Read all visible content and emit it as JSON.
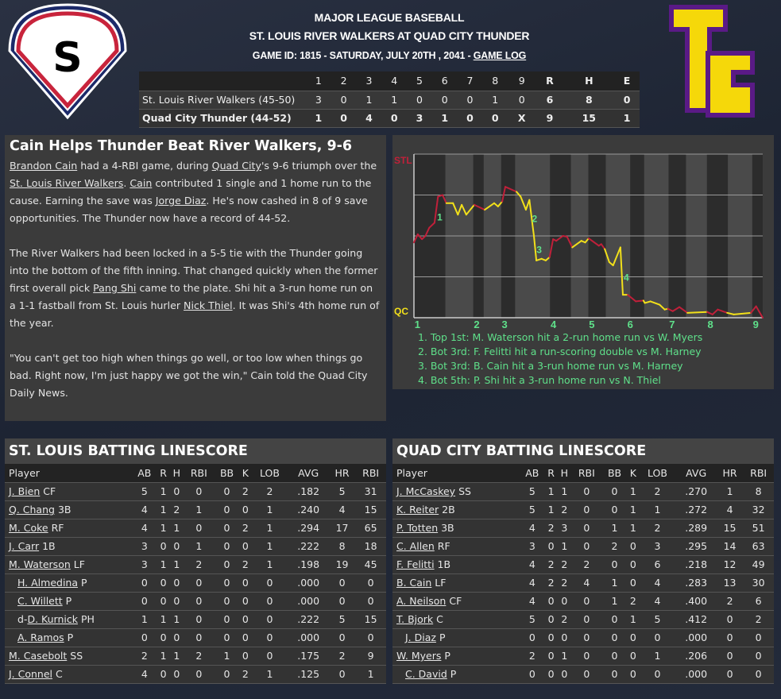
{
  "header": {
    "league": "MAJOR LEAGUE BASEBALL",
    "matchup": "ST. LOUIS RIVER WALKERS AT QUAD CITY THUNDER",
    "game_info": "GAME ID: 1815 - SATURDAY, JULY 20TH , 2041 - ",
    "game_log_link": "GAME LOG"
  },
  "logos": {
    "away_letter": "S",
    "home_letters": [
      "T",
      "C"
    ],
    "away_colors": [
      "#c8243c",
      "#1c2a6a"
    ],
    "home_colors": [
      "#f5d80a",
      "#5a1a86"
    ]
  },
  "linescore": {
    "headers": [
      "",
      "1",
      "2",
      "3",
      "4",
      "5",
      "6",
      "7",
      "8",
      "9",
      "R",
      "H",
      "E"
    ],
    "rows": [
      [
        "St. Louis River Walkers (45-50)",
        "3",
        "0",
        "1",
        "1",
        "0",
        "0",
        "0",
        "1",
        "0",
        "6",
        "8",
        "0"
      ],
      [
        "Quad City Thunder (44-52)",
        "1",
        "0",
        "4",
        "0",
        "3",
        "1",
        "0",
        "0",
        "X",
        "9",
        "15",
        "1"
      ]
    ]
  },
  "article": {
    "title": "Cain Helps Thunder Beat River Walkers, 9-6",
    "paragraphs": [
      [
        {
          "t": "Brandon Cain",
          "link": true
        },
        {
          "t": " had a 4-RBI game, during "
        },
        {
          "t": "Quad City",
          "link": true
        },
        {
          "t": "'s 9-6 triumph over the "
        },
        {
          "t": "St. Louis River Walkers",
          "link": true
        },
        {
          "t": ". "
        },
        {
          "t": "Cain",
          "link": true
        },
        {
          "t": " contributed 1 single and 1 home run to the cause. Earning the save was "
        },
        {
          "t": "Jorge Diaz",
          "link": true
        },
        {
          "t": ". He's now cashed in 8 of 9 save opportunities. The Thunder now have a record of 44-52."
        }
      ],
      [
        {
          "t": "The River Walkers had been locked in a 5-5 tie with the Thunder going into the bottom of the fifth inning. That changed quickly when the former first overall pick "
        },
        {
          "t": "Pang Shi",
          "link": true
        },
        {
          "t": " came to the plate. Shi hit a 3-run home run on a 1-1 fastball from St. Louis hurler "
        },
        {
          "t": "Nick Thiel",
          "link": true
        },
        {
          "t": ". It was Shi's 4th home run of the year."
        }
      ],
      [
        {
          "t": "\"You can't get too high when things go well, or too low when things go bad. Right now, I'm just happy we got the win,\" Cain told the Quad City Daily News."
        }
      ]
    ]
  },
  "chart_data": {
    "type": "line",
    "title": "",
    "y_top_label": "STL",
    "y_bottom_label": "QC",
    "ylim": [
      0,
      100
    ],
    "grid": true,
    "colors": {
      "away": "#c0203a",
      "home": "#f2e01a",
      "annotation": "#5fe08a"
    },
    "inning_ticks": [
      {
        "label": "1",
        "play": 1
      },
      {
        "label": "2",
        "play": 18
      },
      {
        "label": "3",
        "play": 26
      },
      {
        "label": "4",
        "play": 40
      },
      {
        "label": "5",
        "play": 51
      },
      {
        "label": "6",
        "play": 62
      },
      {
        "label": "7",
        "play": 74
      },
      {
        "label": "8",
        "play": 85
      },
      {
        "label": "9",
        "play": 98
      }
    ],
    "bottom_half_ranges": [
      [
        9,
        17
      ],
      [
        20,
        25
      ],
      [
        29,
        39
      ],
      [
        45,
        50
      ],
      [
        55,
        62
      ],
      [
        66,
        73
      ],
      [
        78,
        84
      ],
      [
        90,
        97
      ]
    ],
    "points": [
      [
        0,
        46
      ],
      [
        1.1,
        51
      ],
      [
        2.3,
        48
      ],
      [
        3.3,
        50
      ],
      [
        4.4,
        55
      ],
      [
        5.9,
        58
      ],
      [
        6.9,
        74
      ],
      [
        8.2,
        75
      ],
      [
        9.3,
        70
      ],
      [
        11.2,
        70
      ],
      [
        12.6,
        63
      ],
      [
        13.7,
        69
      ],
      [
        15,
        63
      ],
      [
        17.3,
        69
      ],
      [
        20.3,
        66
      ],
      [
        23,
        70
      ],
      [
        24.1,
        68
      ],
      [
        25.3,
        71
      ],
      [
        26.2,
        80
      ],
      [
        29.4,
        77
      ],
      [
        30.6,
        74
      ],
      [
        32.1,
        66
      ],
      [
        33.1,
        72
      ],
      [
        34.4,
        50
      ],
      [
        35.1,
        35
      ],
      [
        36.6,
        36
      ],
      [
        37.8,
        35
      ],
      [
        38.9,
        37
      ],
      [
        39.9,
        48
      ],
      [
        40.8,
        47
      ],
      [
        42.7,
        50
      ],
      [
        43.9,
        49.5
      ],
      [
        45.4,
        43
      ],
      [
        48,
        47
      ],
      [
        49.1,
        46
      ],
      [
        50.1,
        48.5
      ],
      [
        53,
        44
      ],
      [
        53.7,
        45
      ],
      [
        54.7,
        42
      ],
      [
        56,
        34
      ],
      [
        57.1,
        32
      ],
      [
        59.2,
        43
      ],
      [
        59.9,
        14
      ],
      [
        61.3,
        14
      ],
      [
        63.6,
        10
      ],
      [
        65.8,
        10.5
      ],
      [
        66.2,
        9
      ],
      [
        67.8,
        10
      ],
      [
        70.4,
        8
      ],
      [
        71.9,
        5
      ],
      [
        72.8,
        5.5
      ],
      [
        74.2,
        4
      ],
      [
        76.1,
        6.5
      ],
      [
        78.4,
        3
      ],
      [
        84.1,
        3.5
      ],
      [
        85.6,
        2
      ],
      [
        87.1,
        5
      ],
      [
        89.8,
        3
      ],
      [
        91.7,
        2
      ],
      [
        96.6,
        3
      ],
      [
        98.1,
        7
      ],
      [
        100,
        0
      ]
    ],
    "annotations": [
      {
        "label": "1",
        "play": 7.4,
        "value": 62,
        "text": "1. Top 1st: M. Waterson hit a 2-run home run vs W. Myers"
      },
      {
        "label": "2",
        "play": 34.6,
        "value": 61,
        "text": "2. Bot 3rd: F. Felitti hit a run-scoring double vs M. Harney"
      },
      {
        "label": "3",
        "play": 35.9,
        "value": 42,
        "text": "3. Bot 3rd: B. Cain hit a 3-run home run vs M. Harney"
      },
      {
        "label": "4",
        "play": 60.9,
        "value": 25,
        "text": "4. Bot 5th: P. Shi hit a 3-run home run vs N. Thiel"
      }
    ]
  },
  "batting": {
    "columns": [
      "Player",
      "AB",
      "R",
      "H",
      "RBI",
      "BB",
      "K",
      "LOB",
      "AVG",
      "HR",
      "RBI"
    ],
    "away": {
      "title": "ST. LOUIS BATTING LINESCORE",
      "rows": [
        {
          "name": "J. Bien",
          "pos": "CF",
          "stats": [
            "5",
            "1",
            "0",
            "0",
            "0",
            "2",
            "2",
            ".182",
            "5",
            "31"
          ]
        },
        {
          "name": "Q. Chang",
          "pos": "3B",
          "stats": [
            "4",
            "1",
            "2",
            "1",
            "0",
            "0",
            "1",
            ".240",
            "4",
            "15"
          ]
        },
        {
          "name": "M. Coke",
          "pos": "RF",
          "stats": [
            "4",
            "1",
            "1",
            "0",
            "0",
            "2",
            "1",
            ".294",
            "17",
            "65"
          ]
        },
        {
          "name": "J. Carr",
          "pos": "1B",
          "stats": [
            "3",
            "0",
            "0",
            "1",
            "0",
            "0",
            "1",
            ".222",
            "8",
            "18"
          ]
        },
        {
          "name": "M. Waterson",
          "pos": "LF",
          "stats": [
            "3",
            "1",
            "1",
            "2",
            "0",
            "2",
            "1",
            ".198",
            "19",
            "45"
          ]
        },
        {
          "name": "H. Almedina",
          "pos": "P",
          "sub": true,
          "stats": [
            "0",
            "0",
            "0",
            "0",
            "0",
            "0",
            "0",
            ".000",
            "0",
            "0"
          ]
        },
        {
          "name": "C. Willett",
          "pos": "P",
          "sub": true,
          "stats": [
            "0",
            "0",
            "0",
            "0",
            "0",
            "0",
            "0",
            ".000",
            "0",
            "0"
          ]
        },
        {
          "prefix": "d-",
          "name": "D. Kurnick",
          "pos": "PH",
          "sub": true,
          "stats": [
            "1",
            "1",
            "1",
            "0",
            "0",
            "0",
            "0",
            ".222",
            "5",
            "15"
          ]
        },
        {
          "name": "A. Ramos",
          "pos": "P",
          "sub": true,
          "stats": [
            "0",
            "0",
            "0",
            "0",
            "0",
            "0",
            "0",
            ".000",
            "0",
            "0"
          ]
        },
        {
          "name": "M. Casebolt",
          "pos": "SS",
          "stats": [
            "2",
            "1",
            "1",
            "2",
            "1",
            "0",
            "0",
            ".175",
            "2",
            "9"
          ]
        },
        {
          "name": "J. Connel",
          "pos": "C",
          "stats": [
            "4",
            "0",
            "0",
            "0",
            "0",
            "2",
            "1",
            ".125",
            "0",
            "1"
          ]
        }
      ]
    },
    "home": {
      "title": "QUAD CITY BATTING LINESCORE",
      "rows": [
        {
          "name": "J. McCaskey",
          "pos": "SS",
          "stats": [
            "5",
            "1",
            "1",
            "0",
            "0",
            "1",
            "2",
            ".270",
            "1",
            "8"
          ]
        },
        {
          "name": "K. Reiter",
          "pos": "2B",
          "stats": [
            "5",
            "1",
            "2",
            "0",
            "0",
            "1",
            "1",
            ".272",
            "4",
            "32"
          ]
        },
        {
          "name": "P. Totten",
          "pos": "3B",
          "stats": [
            "4",
            "2",
            "3",
            "0",
            "1",
            "1",
            "2",
            ".289",
            "15",
            "51"
          ]
        },
        {
          "name": "C. Allen",
          "pos": "RF",
          "stats": [
            "3",
            "0",
            "1",
            "0",
            "2",
            "0",
            "3",
            ".295",
            "14",
            "63"
          ]
        },
        {
          "name": "F. Felitti",
          "pos": "1B",
          "stats": [
            "4",
            "2",
            "2",
            "2",
            "0",
            "0",
            "6",
            ".218",
            "12",
            "49"
          ]
        },
        {
          "name": "B. Cain",
          "pos": "LF",
          "stats": [
            "4",
            "2",
            "2",
            "4",
            "1",
            "0",
            "4",
            ".283",
            "13",
            "30"
          ]
        },
        {
          "name": "A. Neilson",
          "pos": "CF",
          "stats": [
            "4",
            "0",
            "0",
            "0",
            "1",
            "2",
            "4",
            ".400",
            "2",
            "6"
          ]
        },
        {
          "name": "T. Bjork",
          "pos": "C",
          "stats": [
            "5",
            "0",
            "2",
            "0",
            "0",
            "1",
            "5",
            ".412",
            "0",
            "2"
          ]
        },
        {
          "name": "J. Diaz",
          "pos": "P",
          "sub": true,
          "stats": [
            "0",
            "0",
            "0",
            "0",
            "0",
            "0",
            "0",
            ".000",
            "0",
            "0"
          ]
        },
        {
          "name": "W. Myers",
          "pos": "P",
          "stats": [
            "2",
            "0",
            "1",
            "0",
            "0",
            "0",
            "1",
            ".206",
            "0",
            "0"
          ]
        },
        {
          "name": "C. David",
          "pos": "P",
          "sub": true,
          "stats": [
            "0",
            "0",
            "0",
            "0",
            "0",
            "0",
            "0",
            ".000",
            "0",
            "0"
          ]
        }
      ]
    }
  }
}
